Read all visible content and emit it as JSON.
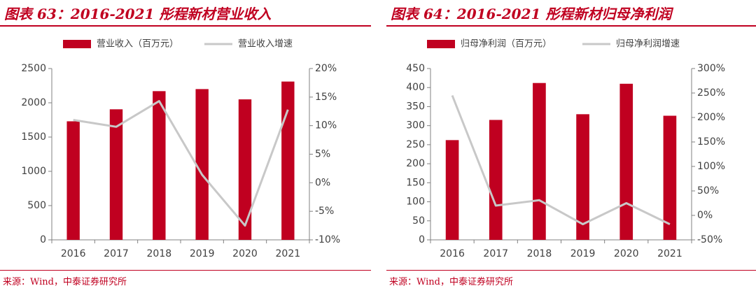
{
  "chart_data": [
    {
      "type": "bar",
      "title": "图表 63：2016-2021 彤程新材营业收入",
      "categories": [
        "2016",
        "2017",
        "2018",
        "2019",
        "2020",
        "2021"
      ],
      "series": [
        {
          "name": "营业收入（百万元）",
          "type": "bar",
          "axis": "left",
          "color": "#c00020",
          "values": [
            1730,
            1905,
            2170,
            2200,
            2050,
            2310
          ]
        },
        {
          "name": "营业收入增速",
          "type": "line",
          "axis": "right",
          "color": "#c8c8c8",
          "values": [
            11,
            9.8,
            14.3,
            1.4,
            -7.5,
            12.8
          ]
        }
      ],
      "ylim": [
        0,
        2500
      ],
      "yticks": [
        "0",
        "500",
        "1000",
        "1500",
        "2000",
        "2500"
      ],
      "y2lim": [
        -10,
        20
      ],
      "y2ticks": [
        "-10%",
        "-5%",
        "0%",
        "5%",
        "10%",
        "15%",
        "20%"
      ],
      "legend": "top",
      "source": "来源：Wind，中泰证券研究所"
    },
    {
      "type": "bar",
      "title": "图表 64：2016-2021 彤程新材归母净利润",
      "categories": [
        "2016",
        "2017",
        "2018",
        "2019",
        "2020",
        "2021"
      ],
      "series": [
        {
          "name": "归母净利润（百万元）",
          "type": "bar",
          "axis": "left",
          "color": "#c00020",
          "values": [
            262,
            315,
            412,
            330,
            410,
            326
          ]
        },
        {
          "name": "归母净利润增速",
          "type": "line",
          "axis": "right",
          "color": "#c8c8c8",
          "values": [
            245,
            20,
            31,
            -18,
            25,
            -18
          ]
        }
      ],
      "ylim": [
        0,
        450
      ],
      "yticks": [
        "0",
        "50",
        "100",
        "150",
        "200",
        "250",
        "300",
        "350",
        "400",
        "450"
      ],
      "y2lim": [
        -50,
        300
      ],
      "y2ticks": [
        "-50%",
        "0%",
        "50%",
        "100%",
        "150%",
        "200%",
        "250%",
        "300%"
      ],
      "legend": "top",
      "source": "来源：Wind，中泰证券研究所"
    }
  ]
}
